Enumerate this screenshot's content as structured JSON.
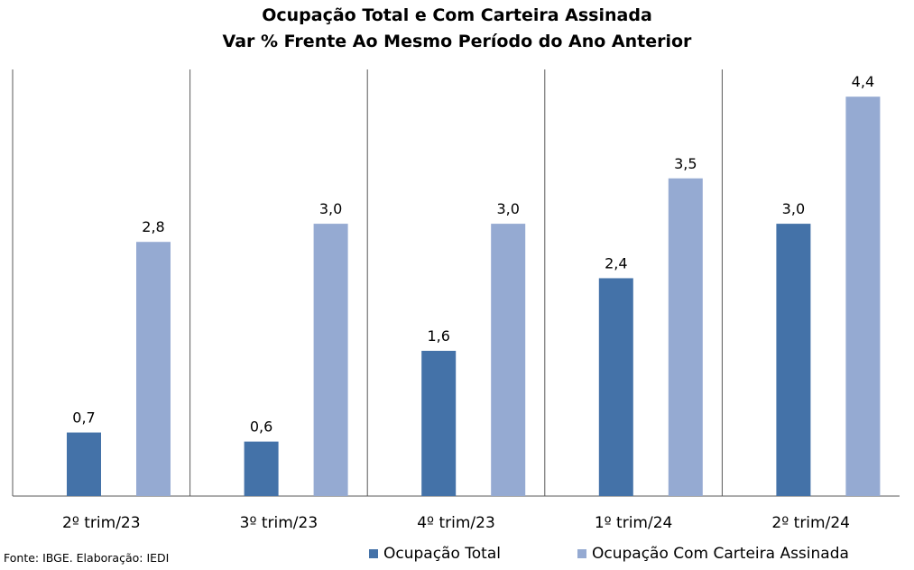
{
  "chart_data": {
    "type": "bar",
    "title": "Ocupação Total e Com Carteira Assinada",
    "subtitle": "Var % Frente Ao Mesmo Período do Ano Anterior",
    "categories": [
      "2º trim/23",
      "3º trim/23",
      "4º trim/23",
      "1º trim/24",
      "2º trim/24"
    ],
    "series": [
      {
        "name": "Ocupação Total",
        "color": "#4472a8",
        "values": [
          0.7,
          0.6,
          1.6,
          2.4,
          3.0
        ],
        "labels": [
          "0,7",
          "0,6",
          "1,6",
          "2,4",
          "3,0"
        ]
      },
      {
        "name": "Ocupação Com Carteira Assinada",
        "color": "#95aad2",
        "values": [
          2.8,
          3.0,
          3.0,
          3.5,
          4.4
        ],
        "labels": [
          "2,8",
          "3,0",
          "3,0",
          "3,5",
          "4,4"
        ]
      }
    ],
    "ylim": [
      0,
      4.7
    ],
    "grid": false,
    "legend_position": "bottom-right"
  },
  "footer": {
    "source": "Fonte: IBGE. Elaboração: IEDI"
  }
}
